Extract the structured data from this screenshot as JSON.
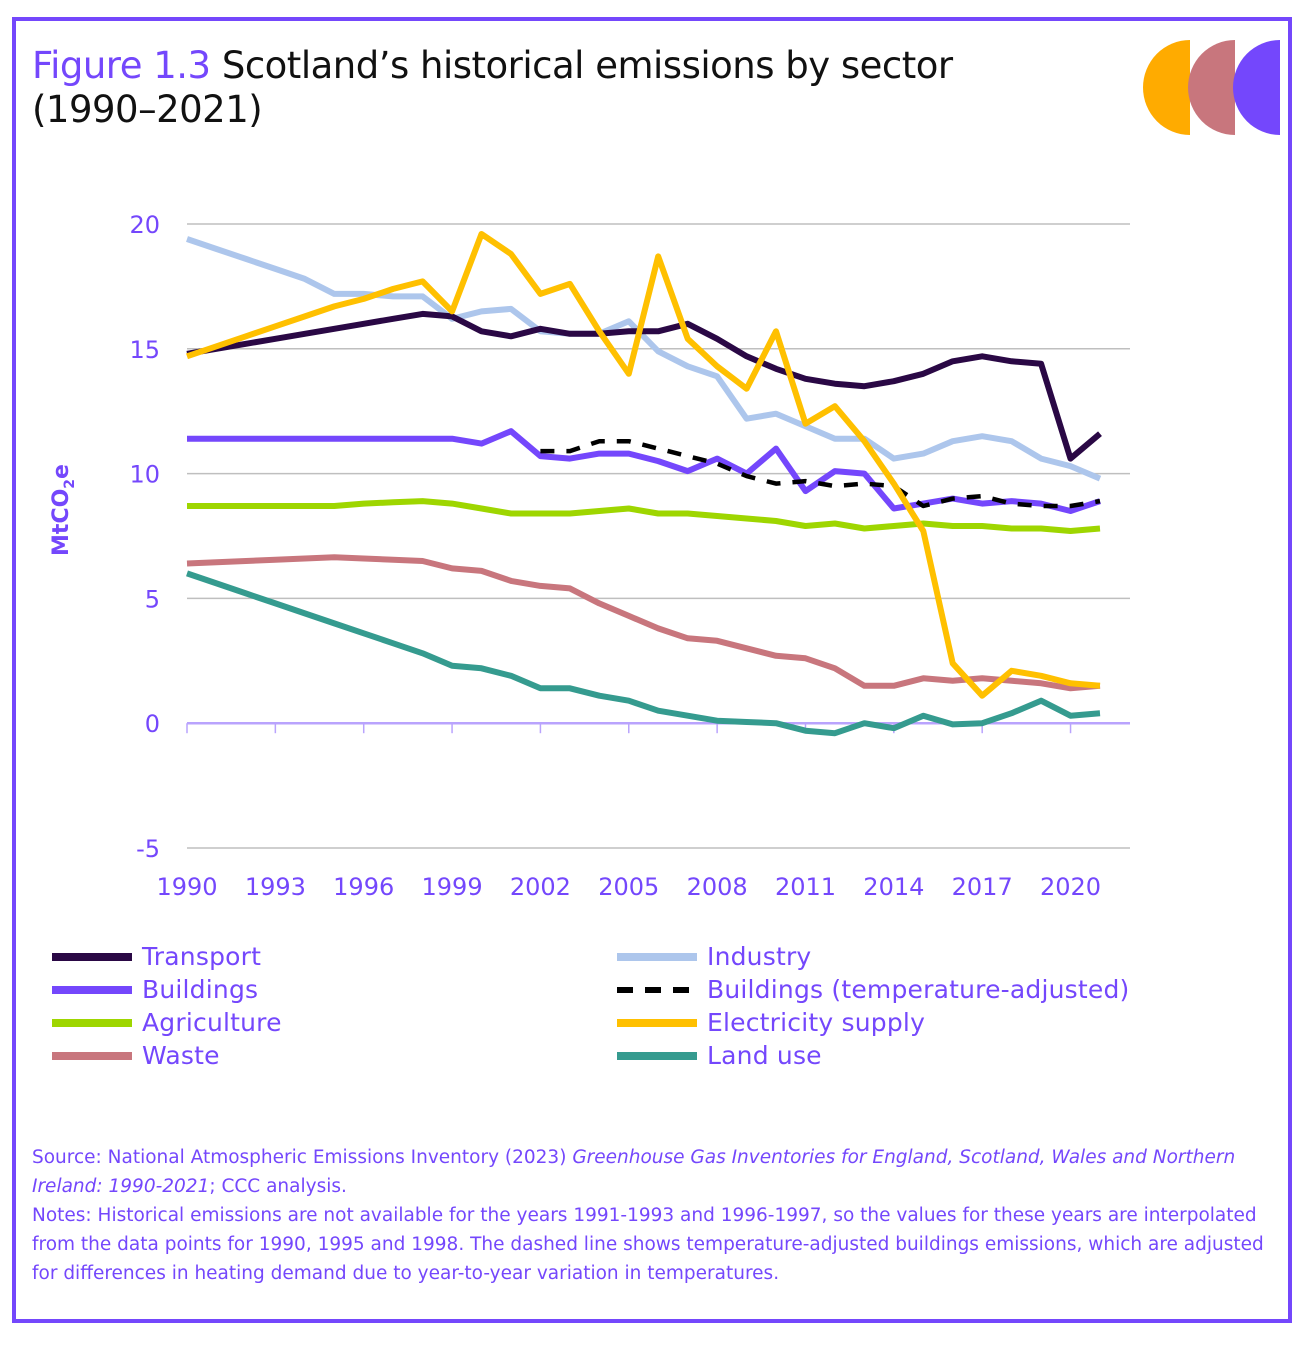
{
  "header": {
    "figure_label": "Figure 1.3",
    "title_line1": " Scotland’s historical emissions by sector",
    "title_line2": "(1990–2021)"
  },
  "logo": {
    "shapes": [
      "orange-half-circle",
      "rose-half-circle",
      "purple-half-circle"
    ],
    "colors": [
      "#ffab00",
      "#c8767d",
      "#7447fc"
    ]
  },
  "chart_data": {
    "type": "line",
    "title": "Scotland’s historical emissions by sector (1990–2021)",
    "xlabel": "",
    "ylabel": "MtCO2e",
    "ylabel_main": "MtCO",
    "ylabel_sub": "2",
    "ylabel_tail": "e",
    "ylim": [
      -5,
      20
    ],
    "yticks": [
      -5,
      0,
      5,
      10,
      15,
      20
    ],
    "x": [
      1990,
      1991,
      1992,
      1993,
      1994,
      1995,
      1996,
      1997,
      1998,
      1999,
      2000,
      2001,
      2002,
      2003,
      2004,
      2005,
      2006,
      2007,
      2008,
      2009,
      2010,
      2011,
      2012,
      2013,
      2014,
      2015,
      2016,
      2017,
      2018,
      2019,
      2020,
      2021
    ],
    "xticks": [
      "1990",
      "1993",
      "1996",
      "1999",
      "2002",
      "2005",
      "2008",
      "2011",
      "2014",
      "2017",
      "2020"
    ],
    "grid": true,
    "legend_position": "bottom",
    "series": [
      {
        "name": "Transport",
        "color": "#2a0845",
        "dashed": false,
        "values": [
          14.8,
          15.0,
          15.2,
          15.4,
          15.6,
          15.8,
          16.0,
          16.2,
          16.4,
          16.3,
          15.7,
          15.5,
          15.8,
          15.6,
          15.6,
          15.7,
          15.7,
          16.0,
          15.4,
          14.7,
          14.2,
          13.8,
          13.6,
          13.5,
          13.7,
          14.0,
          14.5,
          14.7,
          14.5,
          14.4,
          10.6,
          11.6
        ]
      },
      {
        "name": "Industry",
        "color": "#adc6ec",
        "dashed": false,
        "values": [
          19.4,
          19.0,
          18.6,
          18.2,
          17.8,
          17.2,
          17.2,
          17.1,
          17.1,
          16.2,
          16.5,
          16.6,
          15.7,
          15.6,
          15.6,
          16.1,
          14.9,
          14.3,
          13.9,
          12.2,
          12.4,
          11.9,
          11.4,
          11.4,
          10.6,
          10.8,
          11.3,
          11.5,
          11.3,
          10.6,
          10.3,
          9.8
        ]
      },
      {
        "name": "Buildings",
        "color": "#7447fc",
        "dashed": false,
        "values": [
          11.4,
          11.4,
          11.4,
          11.4,
          11.4,
          11.4,
          11.4,
          11.4,
          11.4,
          11.4,
          11.2,
          11.7,
          10.7,
          10.6,
          10.8,
          10.8,
          10.5,
          10.1,
          10.6,
          10.0,
          11.0,
          9.3,
          10.1,
          10.0,
          8.6,
          8.8,
          9.0,
          8.8,
          8.9,
          8.8,
          8.5,
          8.9
        ]
      },
      {
        "name": "Buildings (temperature-adjusted)",
        "color": "#000000",
        "dashed": true,
        "values": [
          null,
          null,
          null,
          null,
          null,
          null,
          null,
          null,
          null,
          null,
          null,
          null,
          10.9,
          10.9,
          11.3,
          11.3,
          11.0,
          10.7,
          10.4,
          9.9,
          9.6,
          9.7,
          9.5,
          9.6,
          9.5,
          8.7,
          9.0,
          9.1,
          8.8,
          8.7,
          8.7,
          8.9
        ]
      },
      {
        "name": "Agriculture",
        "color": "#9ed600",
        "dashed": false,
        "values": [
          8.7,
          8.7,
          8.7,
          8.7,
          8.7,
          8.7,
          8.8,
          8.85,
          8.9,
          8.8,
          8.6,
          8.4,
          8.4,
          8.4,
          8.5,
          8.6,
          8.4,
          8.4,
          8.3,
          8.2,
          8.1,
          7.9,
          8.0,
          7.8,
          7.9,
          8.0,
          7.9,
          7.9,
          7.8,
          7.8,
          7.7,
          7.8
        ]
      },
      {
        "name": "Electricity supply",
        "color": "#ffc000",
        "dashed": false,
        "values": [
          14.7,
          15.1,
          15.5,
          15.9,
          16.3,
          16.7,
          17.0,
          17.4,
          17.7,
          16.5,
          19.6,
          18.8,
          17.2,
          17.6,
          15.7,
          14.0,
          18.7,
          15.4,
          14.3,
          13.4,
          15.7,
          12.0,
          12.7,
          11.3,
          9.6,
          7.7,
          2.4,
          1.1,
          2.1,
          1.9,
          1.6,
          1.5
        ]
      },
      {
        "name": "Waste",
        "color": "#c8767d",
        "dashed": false,
        "values": [
          6.4,
          6.45,
          6.5,
          6.55,
          6.6,
          6.65,
          6.6,
          6.55,
          6.5,
          6.2,
          6.1,
          5.7,
          5.5,
          5.4,
          4.8,
          4.3,
          3.8,
          3.4,
          3.3,
          3.0,
          2.7,
          2.6,
          2.2,
          1.5,
          1.5,
          1.8,
          1.7,
          1.8,
          1.7,
          1.6,
          1.4,
          1.5
        ]
      },
      {
        "name": "Land use",
        "color": "#359b8f",
        "dashed": false,
        "values": [
          6.0,
          5.6,
          5.2,
          4.8,
          4.4,
          4.0,
          3.6,
          3.2,
          2.8,
          2.3,
          2.2,
          1.9,
          1.4,
          1.4,
          1.1,
          0.9,
          0.5,
          0.3,
          0.1,
          0.05,
          0.0,
          -0.3,
          -0.4,
          0.0,
          -0.2,
          0.3,
          -0.05,
          0.0,
          0.4,
          0.9,
          0.3,
          0.4
        ]
      }
    ]
  },
  "legend": [
    {
      "label": "Transport",
      "color": "#2a0845",
      "dashed": false
    },
    {
      "label": "Industry",
      "color": "#adc6ec",
      "dashed": false
    },
    {
      "label": "Buildings",
      "color": "#7447fc",
      "dashed": false
    },
    {
      "label": "Buildings (temperature-adjusted)",
      "color": "#000000",
      "dashed": true
    },
    {
      "label": "Agriculture",
      "color": "#9ed600",
      "dashed": false
    },
    {
      "label": "Electricity supply",
      "color": "#ffc000",
      "dashed": false
    },
    {
      "label": "Waste",
      "color": "#c8767d",
      "dashed": false
    },
    {
      "label": "Land use",
      "color": "#359b8f",
      "dashed": false
    }
  ],
  "notes": {
    "source_prefix": "Source: National Atmospheric Emissions Inventory (2023) ",
    "source_title": "Greenhouse Gas Inventories for England, Scotland, Wales and Northern Ireland: 1990-2021",
    "source_suffix": "; CCC analysis.",
    "notes_text": "Notes: Historical emissions are not available for the years 1991-1993 and 1996-1997, so the values for these years are interpolated from the data points for 1990, 1995 and 1998. The dashed line shows temperature-adjusted buildings emissions, which are adjusted for differences in heating demand due to year-to-year variation in temperatures."
  },
  "colors": {
    "accent": "#7447fc",
    "gridline": "#bfbfbf",
    "zero_axis": "#b9a3fd"
  }
}
